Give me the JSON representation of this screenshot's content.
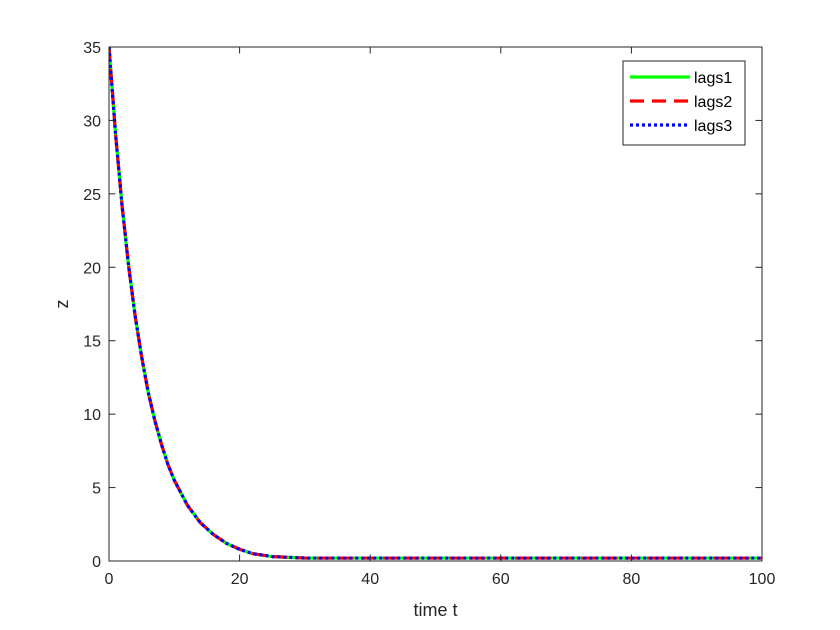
{
  "chart_data": {
    "type": "line",
    "xlabel": "time t",
    "ylabel": "z",
    "xlim": [
      0,
      100
    ],
    "ylim": [
      0,
      35
    ],
    "xticks": [
      0,
      20,
      40,
      60,
      80,
      100
    ],
    "yticks": [
      0,
      5,
      10,
      15,
      20,
      25,
      30,
      35
    ],
    "grid": false,
    "legend_position": "top-right",
    "x": [
      0,
      1,
      2,
      3,
      4,
      5,
      6,
      7,
      8,
      9,
      10,
      12,
      14,
      16,
      18,
      20,
      22,
      25,
      30,
      40,
      50,
      60,
      70,
      80,
      90,
      100
    ],
    "series": [
      {
        "name": "lags1",
        "color": "#00ff00",
        "style": "solid",
        "values": [
          35,
          29.1,
          24.2,
          20.1,
          16.7,
          13.9,
          11.5,
          9.6,
          8.0,
          6.6,
          5.5,
          3.8,
          2.6,
          1.8,
          1.2,
          0.8,
          0.5,
          0.3,
          0.2,
          0.2,
          0.2,
          0.2,
          0.2,
          0.2,
          0.2,
          0.2
        ]
      },
      {
        "name": "lags2",
        "color": "#ff0000",
        "style": "dashed",
        "values": [
          35,
          29.1,
          24.2,
          20.1,
          16.7,
          13.9,
          11.5,
          9.6,
          8.0,
          6.6,
          5.5,
          3.8,
          2.6,
          1.8,
          1.2,
          0.8,
          0.5,
          0.3,
          0.2,
          0.2,
          0.2,
          0.2,
          0.2,
          0.2,
          0.2,
          0.2
        ]
      },
      {
        "name": "lags3",
        "color": "#0000ff",
        "style": "dotted",
        "values": [
          35,
          29.1,
          24.2,
          20.1,
          16.7,
          13.9,
          11.5,
          9.6,
          8.0,
          6.6,
          5.5,
          3.8,
          2.6,
          1.8,
          1.2,
          0.8,
          0.5,
          0.3,
          0.2,
          0.2,
          0.2,
          0.2,
          0.2,
          0.2,
          0.2,
          0.2
        ]
      }
    ]
  }
}
